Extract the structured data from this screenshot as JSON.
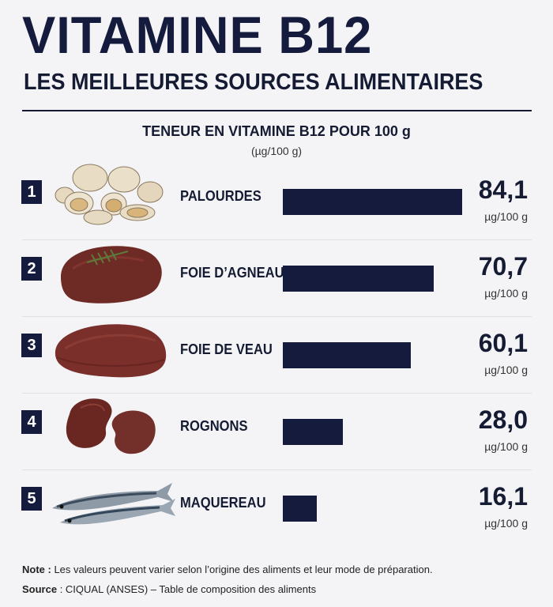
{
  "header": {
    "title": "VITAMINE B12",
    "subtitle": "LES MEILLEURES SOURCES ALIMENTAIRES"
  },
  "chart_data": {
    "type": "bar",
    "title": "TENEUR EN VITAMINE B12 POUR 100 g",
    "unit": "(µg/100 g)",
    "value_unit": "µg/100 g",
    "categories": [
      "PALOURDES",
      "FOIE D’AGNEAU",
      "FOIE DE VEAU",
      "ROGNONS",
      "MAQUEREAU"
    ],
    "values": [
      84.1,
      70.7,
      60.1,
      28.0,
      16.1
    ],
    "value_labels": [
      "84,1",
      "70,7",
      "60,1",
      "28,0",
      "16,1"
    ],
    "ranks": [
      "1",
      "2",
      "3",
      "4",
      "5"
    ],
    "icons": [
      "clams-icon",
      "lamb-liver-icon",
      "veal-liver-icon",
      "kidneys-icon",
      "mackerel-icon"
    ],
    "xlim": [
      0,
      84.1
    ],
    "bar_color": "#141b3d"
  },
  "footer": {
    "note_label": "Note :",
    "note_text": " Les valeurs peuvent varier selon l’origine des aliments et leur mode de préparation.",
    "source_label": "Source",
    "source_text": " : CIQUAL (ANSES) – Table de composition des aliments"
  }
}
